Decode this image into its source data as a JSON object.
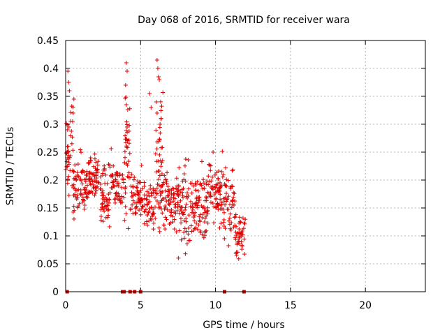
{
  "chart_data": {
    "type": "scatter",
    "title": "Day 068 of 2016, SRMTID for receiver wara",
    "xlabel": "GPS time / hours",
    "ylabel": "SRMTID / TECUs",
    "xlim": [
      0,
      24
    ],
    "ylim": [
      0,
      0.45
    ],
    "x_ticks": [
      "0",
      "5",
      "10",
      "15",
      "20"
    ],
    "y_ticks": [
      "0",
      "0.05",
      "0.1",
      "0.15",
      "0.2",
      "0.25",
      "0.3",
      "0.35",
      "0.4",
      "0.45"
    ],
    "grid": true,
    "marker": "+",
    "color": "#e00000",
    "series": [
      {
        "name": "SRMTID",
        "description_of_envelope": "dense scatter between ~0 and 12 hours",
        "clusters": [
          {
            "x_range": [
              0.0,
              0.5
            ],
            "y_range": [
              0.13,
              0.4
            ],
            "n": 40
          },
          {
            "x_range": [
              0.5,
              1.3
            ],
            "y_range": [
              0.09,
              0.28
            ],
            "n": 60
          },
          {
            "x_range": [
              1.3,
              2.3
            ],
            "y_range": [
              0.15,
              0.26
            ],
            "n": 70
          },
          {
            "x_range": [
              2.3,
              3.1
            ],
            "y_range": [
              0.09,
              0.27
            ],
            "n": 60
          },
          {
            "x_range": [
              3.1,
              3.9
            ],
            "y_range": [
              0.13,
              0.24
            ],
            "n": 50
          },
          {
            "x_range": [
              3.9,
              4.3
            ],
            "y_range": [
              0.1,
              0.41
            ],
            "n": 40
          },
          {
            "x_range": [
              4.3,
              5.2
            ],
            "y_range": [
              0.1,
              0.23
            ],
            "n": 60
          },
          {
            "x_range": [
              5.2,
              6.0
            ],
            "y_range": [
              0.08,
              0.22
            ],
            "n": 55
          },
          {
            "x_range": [
              6.0,
              6.5
            ],
            "y_range": [
              0.06,
              0.41
            ],
            "n": 55
          },
          {
            "x_range": [
              6.5,
              7.5
            ],
            "y_range": [
              0.07,
              0.25
            ],
            "n": 70
          },
          {
            "x_range": [
              7.5,
              8.5
            ],
            "y_range": [
              0.05,
              0.26
            ],
            "n": 70
          },
          {
            "x_range": [
              8.5,
              9.5
            ],
            "y_range": [
              0.06,
              0.25
            ],
            "n": 75
          },
          {
            "x_range": [
              9.5,
              10.5
            ],
            "y_range": [
              0.09,
              0.27
            ],
            "n": 70
          },
          {
            "x_range": [
              10.5,
              11.3
            ],
            "y_range": [
              0.07,
              0.25
            ],
            "n": 55
          },
          {
            "x_range": [
              11.3,
              12.0
            ],
            "y_range": [
              0.04,
              0.16
            ],
            "n": 45
          }
        ],
        "spikes": [
          {
            "x": 0.15,
            "y": 0.395
          },
          {
            "x": 0.2,
            "y": 0.375
          },
          {
            "x": 0.25,
            "y": 0.36
          },
          {
            "x": 0.5,
            "y": 0.32
          },
          {
            "x": 0.55,
            "y": 0.345
          },
          {
            "x": 4.05,
            "y": 0.41
          },
          {
            "x": 4.1,
            "y": 0.395
          },
          {
            "x": 4.0,
            "y": 0.37
          },
          {
            "x": 4.05,
            "y": 0.335
          },
          {
            "x": 4.1,
            "y": 0.295
          },
          {
            "x": 6.1,
            "y": 0.415
          },
          {
            "x": 6.15,
            "y": 0.4
          },
          {
            "x": 6.2,
            "y": 0.385
          },
          {
            "x": 6.05,
            "y": 0.34
          },
          {
            "x": 6.1,
            "y": 0.32
          },
          {
            "x": 6.3,
            "y": 0.3
          },
          {
            "x": 5.6,
            "y": 0.355
          },
          {
            "x": 5.7,
            "y": 0.33
          }
        ],
        "zero_points_x": [
          0.1,
          3.8,
          3.9,
          4.3,
          4.6,
          5.0,
          10.6,
          11.9
        ]
      }
    ]
  }
}
